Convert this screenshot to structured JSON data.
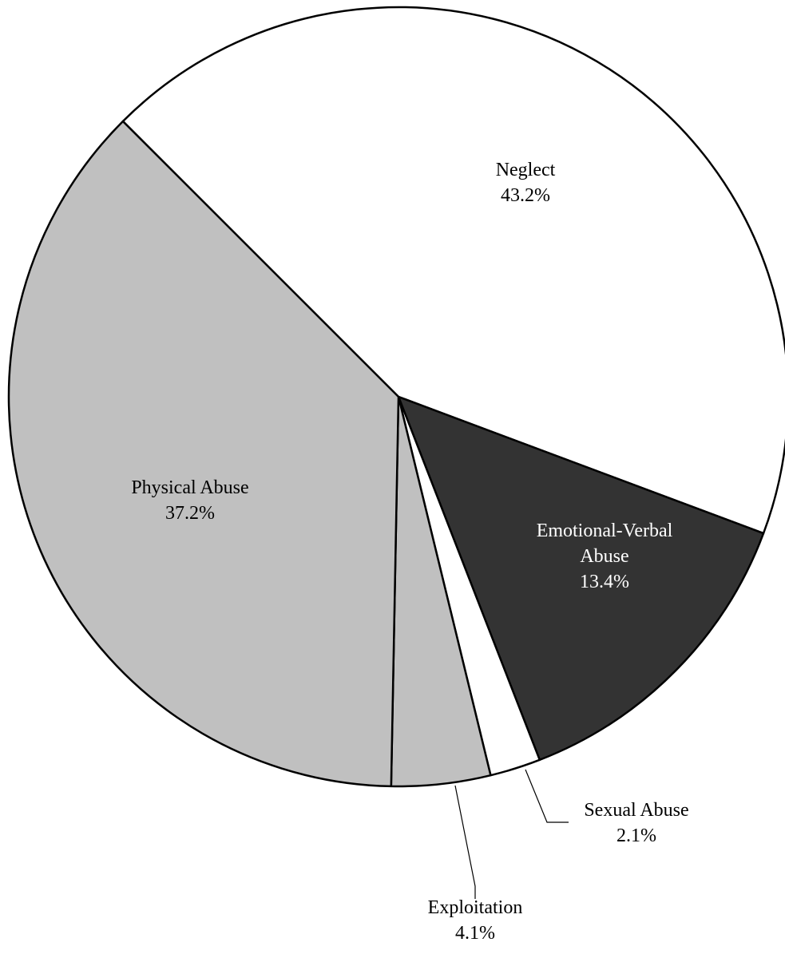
{
  "chart_data": {
    "type": "pie",
    "title": "",
    "slices": [
      {
        "label": "Neglect",
        "value": 43.2,
        "value_label": "43.2%",
        "color": "#ffffff",
        "text_color": "#000000"
      },
      {
        "label": "Emotional-Verbal Abuse",
        "value": 13.4,
        "value_label": "13.4%",
        "color": "#333333",
        "text_color": "#ffffff"
      },
      {
        "label": "Sexual Abuse",
        "value": 2.1,
        "value_label": "2.1%",
        "color": "#ffffff",
        "text_color": "#000000"
      },
      {
        "label": "Exploitation",
        "value": 4.1,
        "value_label": "4.1%",
        "color": "#c0c0c0",
        "text_color": "#000000"
      },
      {
        "label": "Physical Abuse",
        "value": 37.2,
        "value_label": "37.2%",
        "color": "#c0c0c0",
        "text_color": "#000000"
      }
    ],
    "start_angle_deg": 135,
    "direction": "clockwise",
    "label_lines": [
      [
        "Neglect"
      ],
      [
        "Emotional-Verbal",
        "Abuse"
      ],
      [
        "Sexual Abuse"
      ],
      [
        "Exploitation"
      ],
      [
        "Physical Abuse"
      ]
    ],
    "outside_labels": [
      "Sexual Abuse",
      "Exploitation"
    ]
  }
}
